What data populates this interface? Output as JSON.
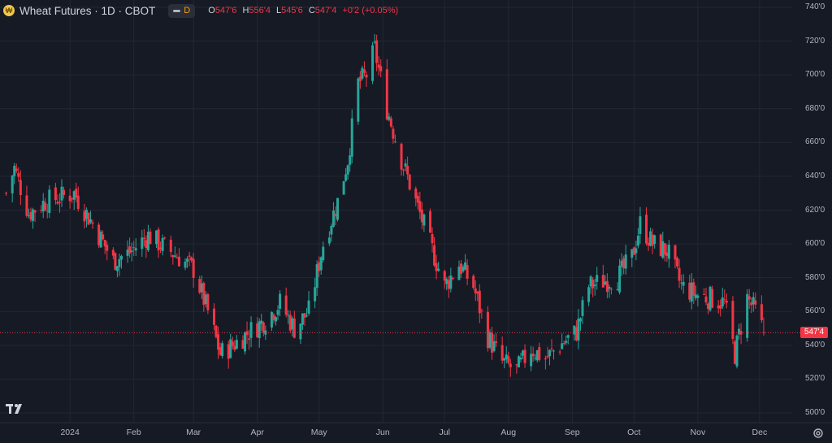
{
  "header": {
    "symbol_icon": "wheat-coin-icon",
    "title": "Wheat Futures · 1D · CBOT",
    "pill_label": "D",
    "ohlc": [
      {
        "key": "O",
        "value": "547'6"
      },
      {
        "key": "H",
        "value": "556'4"
      },
      {
        "key": "L",
        "value": "545'6"
      },
      {
        "key": "C",
        "value": "547'4"
      }
    ],
    "change": "+0'2 (+0.05%)"
  },
  "last_price_label": "547'4",
  "colors": {
    "up": "#26a69a",
    "down": "#f23645",
    "background": "#161a25",
    "grid": "#232733"
  },
  "chart_data": {
    "type": "candlestick",
    "ylim": [
      500,
      740
    ],
    "y_ticks": [
      {
        "v": 740,
        "label": "740'0"
      },
      {
        "v": 720,
        "label": "720'0"
      },
      {
        "v": 700,
        "label": "700'0"
      },
      {
        "v": 680,
        "label": "680'0"
      },
      {
        "v": 660,
        "label": "660'0"
      },
      {
        "v": 640,
        "label": "640'0"
      },
      {
        "v": 620,
        "label": "620'0"
      },
      {
        "v": 600,
        "label": "600'0"
      },
      {
        "v": 580,
        "label": "580'0"
      },
      {
        "v": 560,
        "label": "560'0"
      },
      {
        "v": 540,
        "label": "540'0"
      },
      {
        "v": 520,
        "label": "520'0"
      },
      {
        "v": 500,
        "label": "500'0"
      }
    ],
    "x_ticks": [
      "2024",
      "Feb",
      "Mar",
      "Apr",
      "May",
      "Jun",
      "Jul",
      "Aug",
      "Sep",
      "Oct",
      "Nov",
      "Dec"
    ],
    "last_price": 547.5,
    "close_path": [
      [
        "2023-12-01",
        630
      ],
      [
        "2023-12-05",
        645
      ],
      [
        "2023-12-12",
        618
      ],
      [
        "2023-12-20",
        625
      ],
      [
        "2024-01-03",
        630
      ],
      [
        "2024-01-12",
        612
      ],
      [
        "2024-01-22",
        590
      ],
      [
        "2024-01-30",
        595
      ],
      [
        "2024-02-08",
        605
      ],
      [
        "2024-02-16",
        598
      ],
      [
        "2024-02-23",
        592
      ],
      [
        "2024-03-01",
        585
      ],
      [
        "2024-03-08",
        560
      ],
      [
        "2024-03-14",
        535
      ],
      [
        "2024-03-20",
        540
      ],
      [
        "2024-03-28",
        548
      ],
      [
        "2024-04-05",
        555
      ],
      [
        "2024-04-12",
        565
      ],
      [
        "2024-04-19",
        550
      ],
      [
        "2024-04-26",
        560
      ],
      [
        "2024-05-03",
        600
      ],
      [
        "2024-05-10",
        625
      ],
      [
        "2024-05-15",
        650
      ],
      [
        "2024-05-20",
        695
      ],
      [
        "2024-05-24",
        700
      ],
      [
        "2024-05-28",
        715
      ],
      [
        "2024-06-03",
        680
      ],
      [
        "2024-06-10",
        650
      ],
      [
        "2024-06-17",
        625
      ],
      [
        "2024-06-24",
        600
      ],
      [
        "2024-07-01",
        575
      ],
      [
        "2024-07-08",
        588
      ],
      [
        "2024-07-15",
        575
      ],
      [
        "2024-07-22",
        545
      ],
      [
        "2024-07-29",
        530
      ],
      [
        "2024-08-05",
        525
      ],
      [
        "2024-08-12",
        538
      ],
      [
        "2024-08-19",
        532
      ],
      [
        "2024-08-26",
        540
      ],
      [
        "2024-09-03",
        548
      ],
      [
        "2024-09-09",
        575
      ],
      [
        "2024-09-16",
        578
      ],
      [
        "2024-09-23",
        580
      ],
      [
        "2024-09-30",
        592
      ],
      [
        "2024-10-04",
        612
      ],
      [
        "2024-10-10",
        600
      ],
      [
        "2024-10-17",
        596
      ],
      [
        "2024-10-24",
        575
      ],
      [
        "2024-10-31",
        570
      ],
      [
        "2024-11-07",
        568
      ],
      [
        "2024-11-14",
        565
      ],
      [
        "2024-11-19",
        535
      ],
      [
        "2024-11-25",
        568
      ],
      [
        "2024-11-29",
        560
      ],
      [
        "2024-12-03",
        547.5
      ]
    ],
    "x_range": [
      "2023-11-28",
      "2024-12-05"
    ],
    "tick_dates": [
      "2024-01-01",
      "2024-02-01",
      "2024-03-01",
      "2024-04-01",
      "2024-05-01",
      "2024-06-01",
      "2024-07-01",
      "2024-08-01",
      "2024-09-01",
      "2024-10-01",
      "2024-11-01",
      "2024-12-01"
    ]
  }
}
